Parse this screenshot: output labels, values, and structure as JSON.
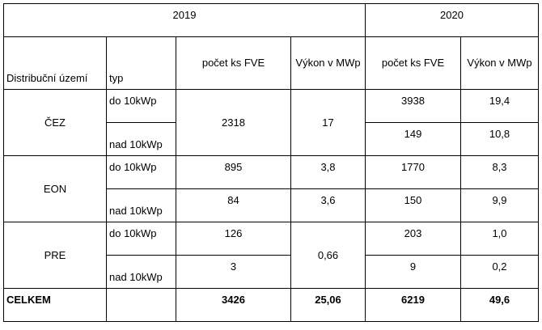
{
  "table": {
    "years": [
      "2019",
      "2020"
    ],
    "headers": {
      "region": "Distribuční území",
      "type": "typ",
      "count": "počet ks FVE",
      "power_2019": "Výkon v MWp",
      "power_2020": "Výkon v MWp"
    },
    "regions": [
      {
        "name": "ČEZ",
        "rows": [
          {
            "type": "do 10kWp",
            "count_2020": "3938",
            "power_2020": "19,4"
          },
          {
            "type": "nad 10kWp",
            "count_2020": "149",
            "power_2020": "10,8"
          }
        ],
        "count_2019": "2318",
        "power_2019": "17"
      },
      {
        "name": "EON",
        "rows": [
          {
            "type": "do 10kWp",
            "count_2019": "895",
            "power_2019": "3,8",
            "count_2020": "1770",
            "power_2020": "8,3"
          },
          {
            "type": "nad 10kWp",
            "count_2019": "84",
            "power_2019": "3,6",
            "count_2020": "150",
            "power_2020": "9,9"
          }
        ]
      },
      {
        "name": "PRE",
        "rows": [
          {
            "type": "do 10kWp",
            "count_2019": "126",
            "count_2020": "203",
            "power_2020": "1,0"
          },
          {
            "type": "nad 10kWp",
            "count_2019": "3",
            "count_2020": "9",
            "power_2020": "0,2"
          }
        ],
        "power_2019": "0,66"
      }
    ],
    "total": {
      "label": "CELKEM",
      "count_2019": "3426",
      "power_2019": "25,06",
      "count_2020": "6219",
      "power_2020": "49,6"
    }
  }
}
